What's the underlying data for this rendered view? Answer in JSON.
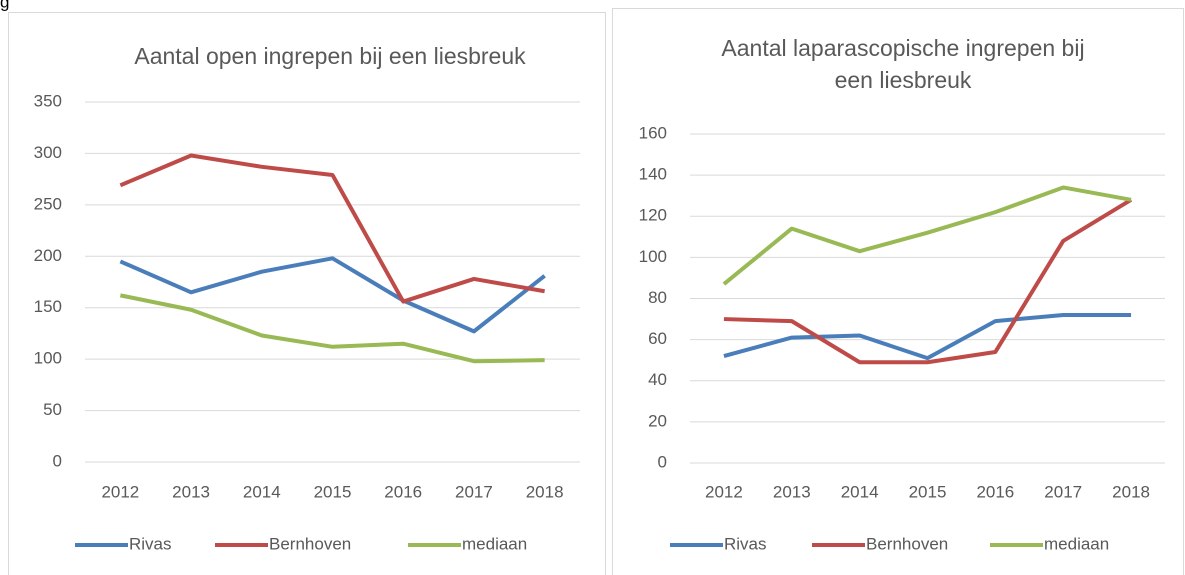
{
  "heading": "g",
  "chart_data": [
    {
      "type": "line",
      "title": [
        "Aantal open ingrepen bij een liesbreuk"
      ],
      "categories": [
        "2012",
        "2013",
        "2014",
        "2015",
        "2016",
        "2017",
        "2018"
      ],
      "series": [
        {
          "name": "Rivas",
          "color": "#4a7ebb",
          "values": [
            195,
            165,
            185,
            198,
            157,
            127,
            181
          ]
        },
        {
          "name": "Bernhoven",
          "color": "#be4b48",
          "values": [
            269,
            298,
            287,
            279,
            156,
            178,
            166
          ]
        },
        {
          "name": "mediaan",
          "color": "#98b954",
          "values": [
            162,
            148,
            123,
            112,
            115,
            98,
            99
          ]
        }
      ],
      "ylim": [
        0,
        350
      ],
      "yticks": [
        0,
        50,
        100,
        150,
        200,
        250,
        300,
        350
      ],
      "grid": true,
      "legend": "bottom"
    },
    {
      "type": "line",
      "title": [
        "Aantal laparascopische ingrepen bij",
        "een liesbreuk"
      ],
      "categories": [
        "2012",
        "2013",
        "2014",
        "2015",
        "2016",
        "2017",
        "2018"
      ],
      "series": [
        {
          "name": "Rivas",
          "color": "#4a7ebb",
          "values": [
            52,
            61,
            62,
            51,
            69,
            72,
            72
          ]
        },
        {
          "name": "Bernhoven",
          "color": "#be4b48",
          "values": [
            70,
            69,
            49,
            49,
            54,
            108,
            128
          ]
        },
        {
          "name": "mediaan",
          "color": "#98b954",
          "values": [
            87,
            114,
            103,
            112,
            122,
            134,
            128
          ]
        }
      ],
      "ylim": [
        0,
        160
      ],
      "yticks": [
        0,
        20,
        40,
        60,
        80,
        100,
        120,
        140,
        160
      ],
      "grid": true,
      "legend": "bottom"
    }
  ]
}
